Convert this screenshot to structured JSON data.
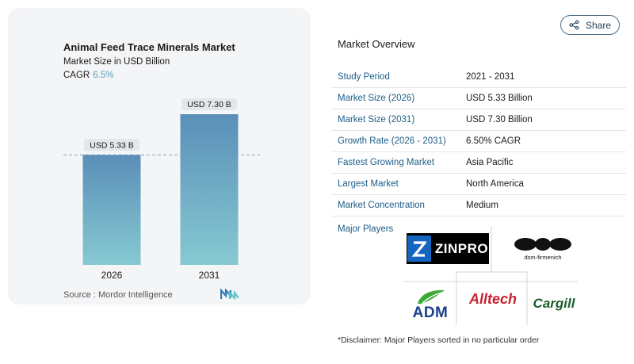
{
  "chart_data": {
    "type": "bar",
    "title": "Animal Feed Trace Minerals Market",
    "subtitle": "Market Size in USD Billion",
    "cagr_label": "CAGR",
    "cagr_value": "6.5%",
    "categories": [
      "2026",
      "2031"
    ],
    "values": [
      5.33,
      7.3
    ],
    "data_labels": [
      "USD 5.33 B",
      "USD 7.30 B"
    ],
    "ylim": [
      0,
      7.3
    ],
    "colors": {
      "bar_top": "#5b8fb8",
      "bar_bottom": "#86c9d2",
      "reference_line": "#8aa0b3"
    },
    "source": "Source :  Mordor Intelligence"
  },
  "header": {
    "share_label": "Share"
  },
  "overview": {
    "title": "Market Overview",
    "rows": [
      {
        "label": "Study Period",
        "value": "2021 - 2031"
      },
      {
        "label": "Market Size (2026)",
        "value": "USD 5.33 Billion"
      },
      {
        "label": "Market Size (2031)",
        "value": "USD 7.30 Billion"
      },
      {
        "label": "Growth Rate (2026 - 2031)",
        "value": "6.50% CAGR"
      },
      {
        "label": "Fastest Growing Market",
        "value": "Asia Pacific"
      },
      {
        "label": "Largest Market",
        "value": "North America"
      },
      {
        "label": "Market Concentration",
        "value": "Medium"
      }
    ]
  },
  "players": {
    "label": "Major Players",
    "logos": [
      "ZINPRO",
      "dsm-firmenich",
      "ADM",
      "Alltech",
      "Cargill"
    ],
    "disclaimer": "*Disclaimer: Major Players sorted in no particular order"
  },
  "brand": {
    "accent": "#1d5d87"
  }
}
